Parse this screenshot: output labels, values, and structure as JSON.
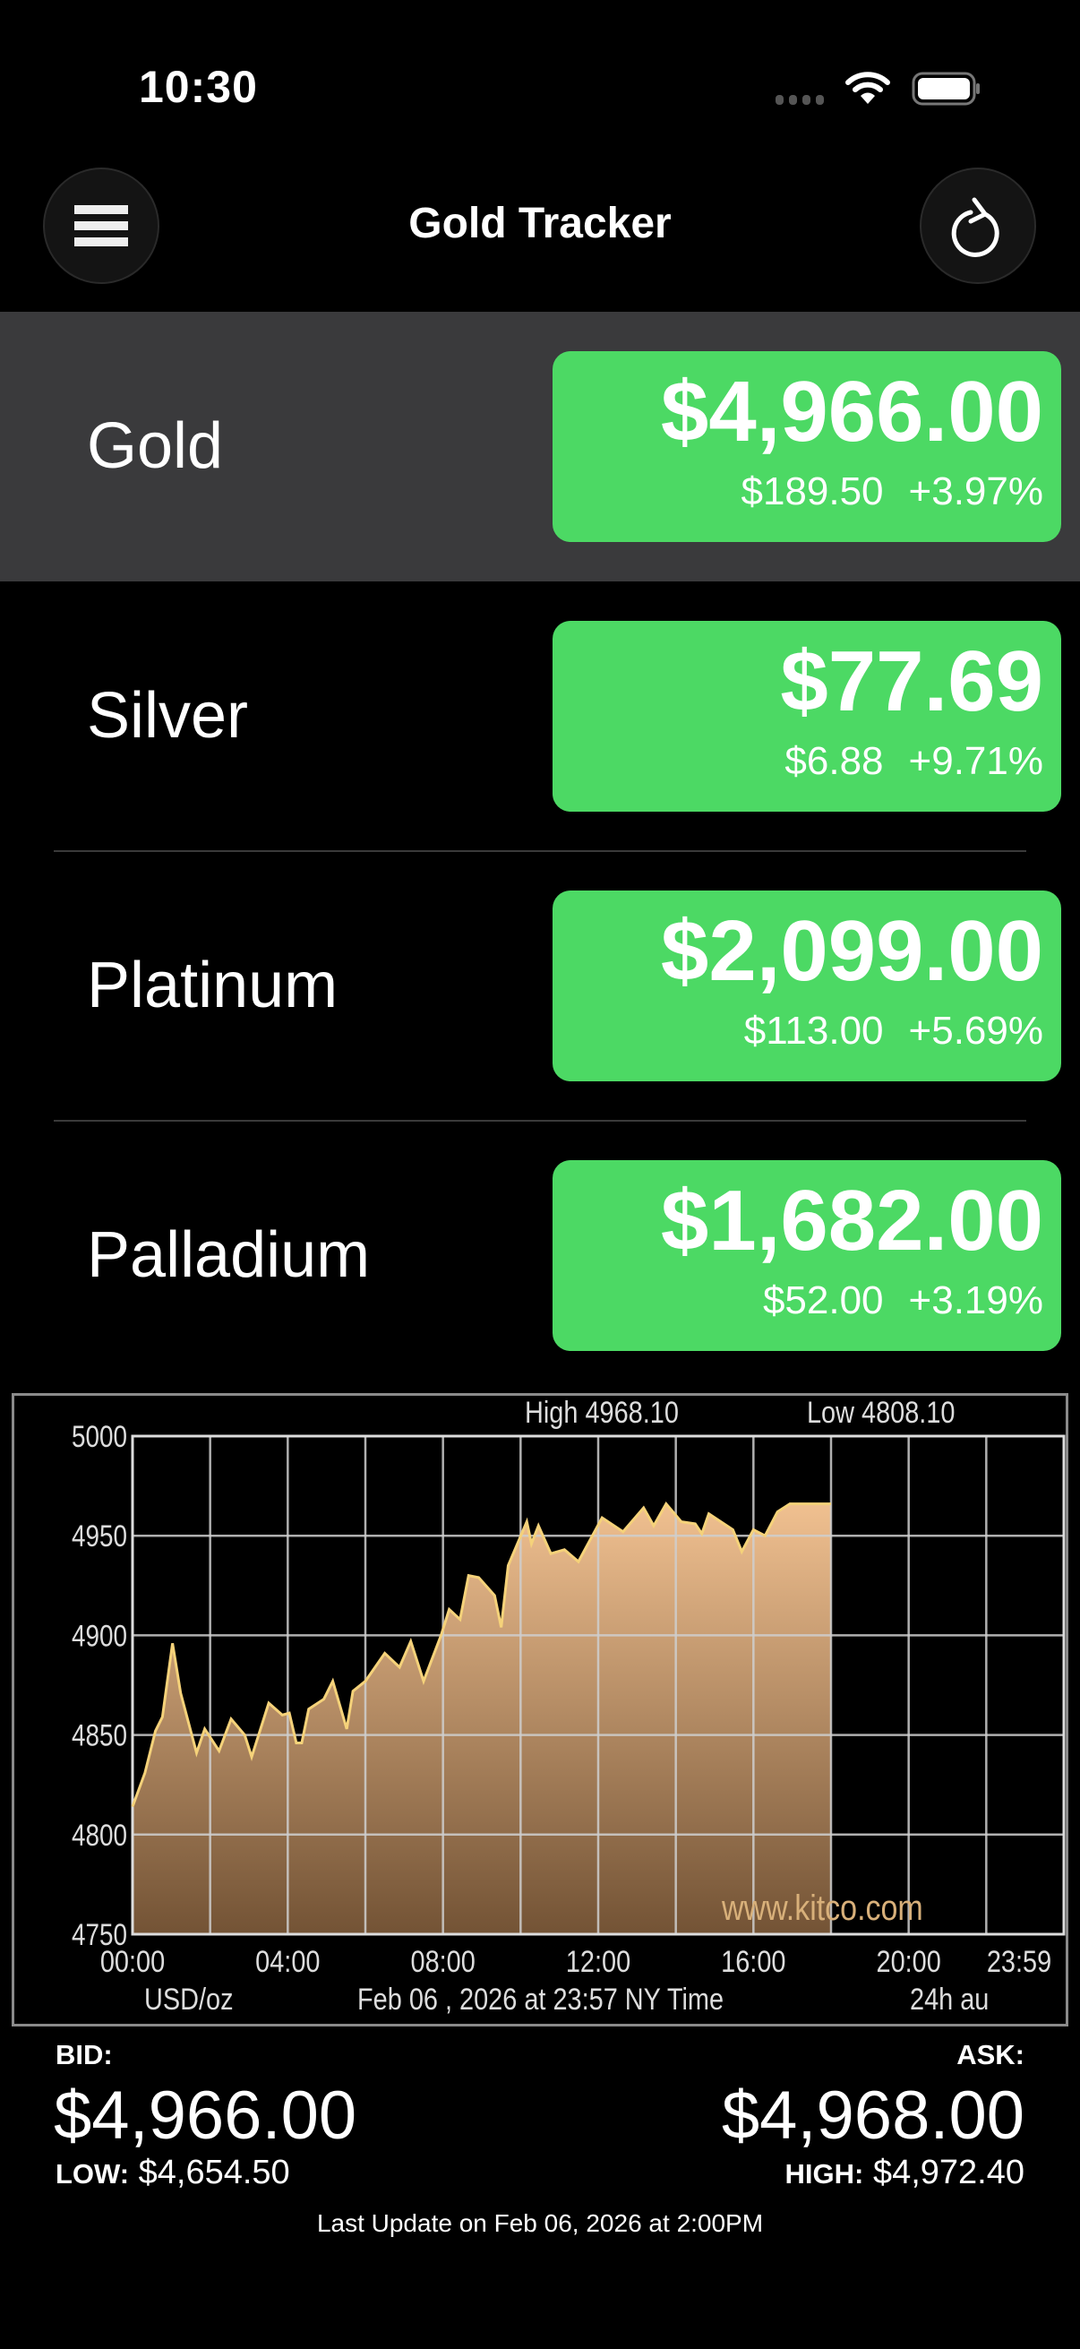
{
  "status_bar": {
    "time": "10:30",
    "icons": [
      "signal-icon",
      "wifi-icon",
      "battery-icon"
    ]
  },
  "header": {
    "title": "Gold Tracker",
    "menu_icon": "hamburger-menu-icon",
    "refresh_icon": "refresh-icon"
  },
  "colors": {
    "positive": "#4cd964",
    "selected_row": "#3a3a3c",
    "chart_fill_top": "#f0c090",
    "chart_fill_bottom": "#735335",
    "chart_line": "#f5d27a"
  },
  "metals": [
    {
      "name": "Gold",
      "price": "$4,966.00",
      "change": "$189.50",
      "percent": "+3.97%",
      "selected": true
    },
    {
      "name": "Silver",
      "price": "$77.69",
      "change": "$6.88",
      "percent": "+9.71%",
      "selected": false
    },
    {
      "name": "Platinum",
      "price": "$2,099.00",
      "change": "$113.00",
      "percent": "+5.69%",
      "selected": false
    },
    {
      "name": "Palladium",
      "price": "$1,682.00",
      "change": "$52.00",
      "percent": "+3.19%",
      "selected": false
    }
  ],
  "chart_data": {
    "type": "area",
    "high_label": "High 4968.10",
    "low_label": "Low 4808.10",
    "watermark": "www.kitco.com",
    "unit_label": "USD/oz",
    "date_label": "Feb 06 , 2026 at 23:57 NY Time",
    "range_label": "24h au",
    "ylim": [
      4750,
      5000
    ],
    "yticks": [
      "5000",
      "4950",
      "4900",
      "4850",
      "4800",
      "4750"
    ],
    "xlim_hours": [
      0,
      24
    ],
    "xticks": [
      "00:00",
      "04:00",
      "08:00",
      "12:00",
      "16:00",
      "20:00",
      "23:59"
    ],
    "grid": true,
    "x_hours": [
      0,
      0.32,
      0.59,
      0.77,
      1.03,
      1.24,
      1.65,
      1.86,
      2.23,
      2.54,
      2.89,
      3.07,
      3.51,
      3.86,
      4.04,
      4.22,
      4.36,
      4.54,
      4.93,
      5.16,
      5.52,
      5.68,
      6.0,
      6.5,
      6.88,
      7.17,
      7.5,
      7.95,
      8.16,
      8.44,
      8.66,
      8.92,
      9.33,
      9.5,
      9.68,
      10.16,
      10.28,
      10.46,
      10.78,
      11.13,
      11.49,
      12.1,
      12.64,
      13.17,
      13.43,
      13.75,
      14.14,
      14.5,
      14.67,
      14.85,
      15.47,
      15.7,
      16.0,
      16.3,
      16.62,
      16.94,
      18.0
    ],
    "y": [
      4814,
      4831,
      4852,
      4859,
      4896,
      4871,
      4841,
      4853,
      4842,
      4858,
      4850,
      4839,
      4866,
      4860,
      4861,
      4846,
      4846,
      4863,
      4868,
      4877,
      4853,
      4872,
      4877,
      4891,
      4884,
      4897,
      4877,
      4900,
      4913,
      4908,
      4930,
      4929,
      4920,
      4904,
      4935,
      4957,
      4946,
      4955,
      4941,
      4943,
      4937,
      4959,
      4952,
      4964,
      4955,
      4966,
      4957,
      4956,
      4951,
      4961,
      4953,
      4942,
      4953,
      4950,
      4962,
      4966,
      4966
    ]
  },
  "quote": {
    "bid_label": "BID:",
    "bid": "$4,966.00",
    "ask_label": "ASK:",
    "ask": "$4,968.00",
    "low_label": "LOW:",
    "low": "$4,654.50",
    "high_label": "HIGH:",
    "high": "$4,972.40",
    "last_update": "Last Update on Feb 06, 2026 at 2:00PM"
  }
}
